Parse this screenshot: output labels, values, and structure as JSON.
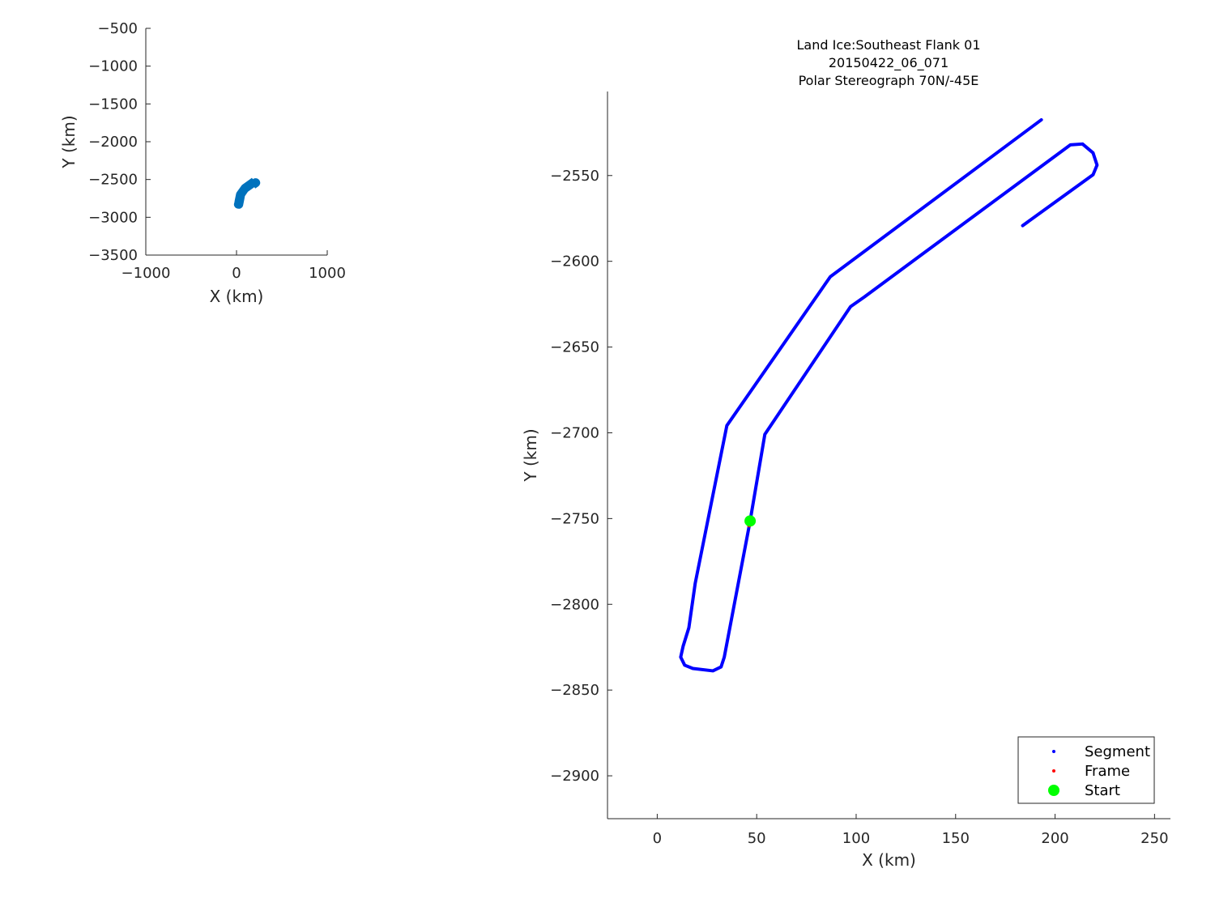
{
  "chart_data": [
    {
      "type": "line",
      "name": "overview",
      "xlabel": "X (km)",
      "ylabel": "Y (km)",
      "xlim": [
        -1000,
        1000
      ],
      "ylim": [
        -3500,
        -500
      ],
      "xticks": [
        -1000,
        0,
        1000
      ],
      "yticks": [
        -500,
        -1000,
        -1500,
        -2000,
        -2500,
        -3000,
        -3500
      ],
      "color": "#0072bd",
      "grid": false
    },
    {
      "type": "line",
      "name": "detail",
      "title": [
        "Land Ice:Southeast Flank 01",
        "20150422_06_071",
        "Polar Stereograph 70N/-45E"
      ],
      "xlabel": "X (km)",
      "ylabel": "Y (km)",
      "xlim": [
        -25,
        258
      ],
      "ylim": [
        -2925,
        -2501
      ],
      "xticks": [
        0,
        50,
        100,
        150,
        200,
        250
      ],
      "yticks": [
        -2550,
        -2600,
        -2650,
        -2700,
        -2750,
        -2800,
        -2850,
        -2900
      ],
      "grid": false,
      "legend": {
        "placement": "bottom-right",
        "entries": [
          "Segment",
          "Frame",
          "Start"
        ]
      },
      "series": [
        {
          "name": "Segment",
          "color": "#0000ff",
          "x": [
            193.1,
            87.0,
            35.0,
            19.1,
            15.9,
            13.0,
            11.8,
            13.8,
            17.9,
            28.0,
            32.1,
            33.7,
            46.7,
            54.1,
            97.2,
            104.1,
            207.7,
            213.8,
            219.1,
            221.1,
            219.1,
            183.7
          ],
          "y": [
            -2517.5,
            -2609.0,
            -2695.8,
            -2787.7,
            -2813.7,
            -2824.5,
            -2830.8,
            -2835.5,
            -2837.4,
            -2838.8,
            -2836.5,
            -2830.8,
            -2751.4,
            -2700.9,
            -2626.4,
            -2620.8,
            -2532.1,
            -2531.6,
            -2536.8,
            -2543.9,
            -2549.5,
            -2579.2
          ]
        },
        {
          "name": "Frame",
          "color": "#ff0000",
          "x": [
            46.2
          ],
          "y": [
            -2754
          ]
        },
        {
          "name": "Start",
          "color": "#00ff00",
          "x": [
            46.7
          ],
          "y": [
            -2751.4
          ]
        }
      ]
    }
  ]
}
